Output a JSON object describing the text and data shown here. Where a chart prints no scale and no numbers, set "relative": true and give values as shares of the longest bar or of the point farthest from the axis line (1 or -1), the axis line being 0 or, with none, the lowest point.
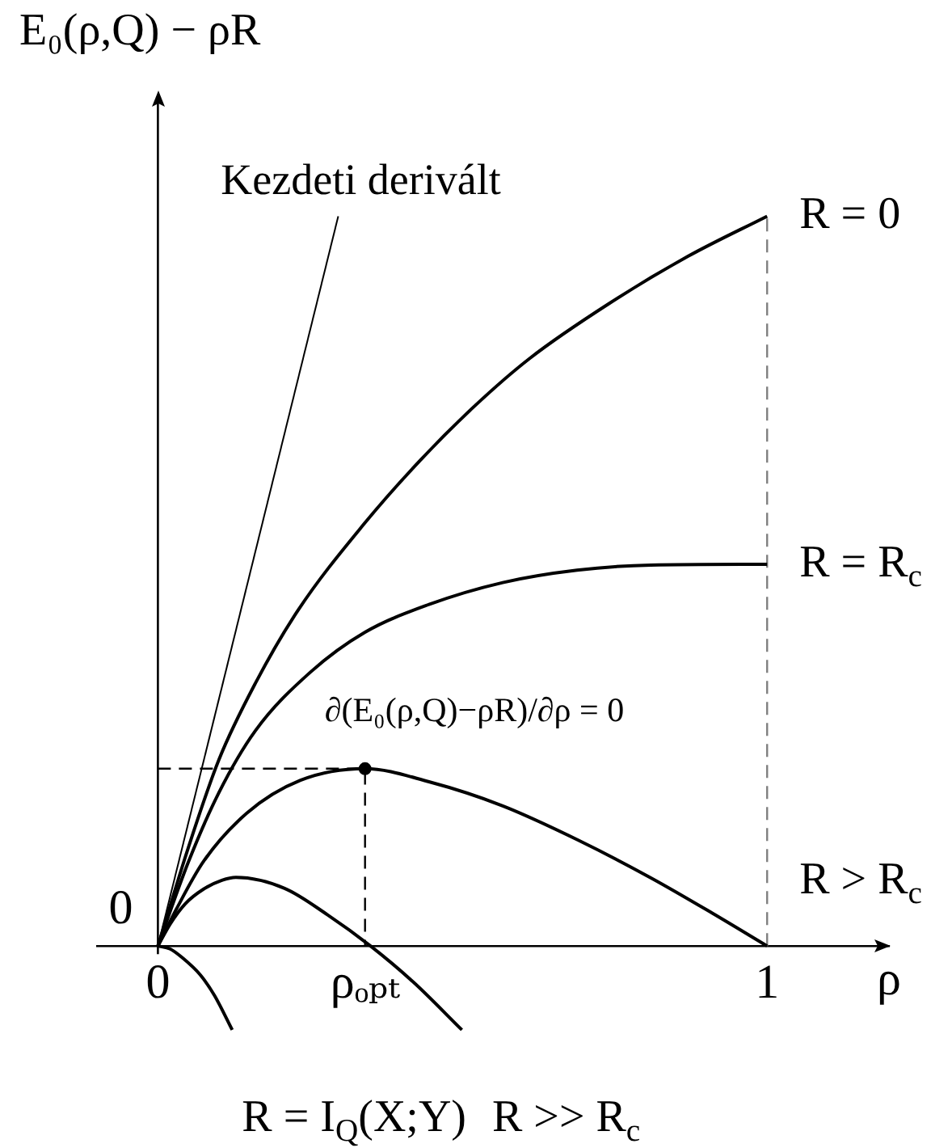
{
  "chart_data": {
    "type": "line",
    "relative": true,
    "ylabel": "E₀(ρ,Q) − ρR",
    "xlabel": "ρ",
    "xlim": [
      -0.1,
      1.2
    ],
    "xticks": [
      0,
      {
        "value": 0.34,
        "label": "ρₒₚₜ"
      },
      1
    ],
    "series": [
      {
        "name": "Kezdeti derivált",
        "color": "#000000",
        "x": [
          0,
          0.296
        ],
        "values": [
          0,
          1.0
        ]
      },
      {
        "name": "R = 0",
        "color": "#000000",
        "x": [
          0,
          0.05,
          0.1,
          0.16,
          0.23,
          0.34,
          0.43,
          0.52,
          0.61,
          0.74,
          0.87,
          1.0
        ],
        "values": [
          0,
          0.135,
          0.255,
          0.36,
          0.46,
          0.58,
          0.665,
          0.74,
          0.805,
          0.88,
          0.945,
          1.0
        ]
      },
      {
        "name": "R = R$_{c}$",
        "color": "#000000",
        "x": [
          0,
          0.05,
          0.1,
          0.16,
          0.25,
          0.34,
          0.445,
          0.566,
          0.688,
          0.809,
          1.0
        ],
        "values": [
          0,
          0.115,
          0.21,
          0.295,
          0.375,
          0.43,
          0.468,
          0.498,
          0.515,
          0.522,
          0.523
        ]
      },
      {
        "name": "R > R$_{c}$",
        "color": "#000000",
        "x": [
          0,
          0.03,
          0.075,
          0.146,
          0.234,
          0.34,
          0.445,
          0.566,
          0.69,
          0.81,
          0.91,
          1.0
        ],
        "values": [
          0,
          0.05,
          0.116,
          0.182,
          0.227,
          0.243,
          0.225,
          0.192,
          0.145,
          0.093,
          0.045,
          0
        ]
      },
      {
        "name": "R >> R$_{c}$",
        "color": "#000000",
        "x": [
          0,
          0.02,
          0.045,
          0.075,
          0.105,
          0.128,
          0.208,
          0.278,
          0.349,
          0.42,
          0.499
        ],
        "values": [
          0,
          0.03,
          0.058,
          0.078,
          0.09,
          0.094,
          0.079,
          0.043,
          0,
          -0.05,
          -0.115
        ]
      },
      {
        "name": "R = I$_{Q}$(X;Y)",
        "color": "#000000",
        "x": [
          0,
          0.02,
          0.04,
          0.07,
          0.093,
          0.122
        ],
        "values": [
          0,
          -0.004,
          -0.016,
          -0.04,
          -0.068,
          -0.115
        ]
      },
      {
        "line_style": "dashed",
        "color": "#808080",
        "x": [
          1,
          1
        ],
        "values": [
          0,
          1.0
        ]
      },
      {
        "line_style": "dashed",
        "color": "#000000",
        "x": [
          0,
          0.34,
          0.34
        ],
        "values": [
          0.243,
          0.243,
          0
        ]
      },
      {
        "type": "scatter",
        "marker": "circle",
        "color": "#000000",
        "x": [
          0.34
        ],
        "values": [
          0.243
        ]
      }
    ],
    "annotations": [
      {
        "text": "∂(E₀(ρ,Q)−ρR)/∂ρ = 0",
        "x": 0.34,
        "y": 0.243
      },
      {
        "text": "0",
        "x": 0,
        "y": 0
      }
    ]
  }
}
